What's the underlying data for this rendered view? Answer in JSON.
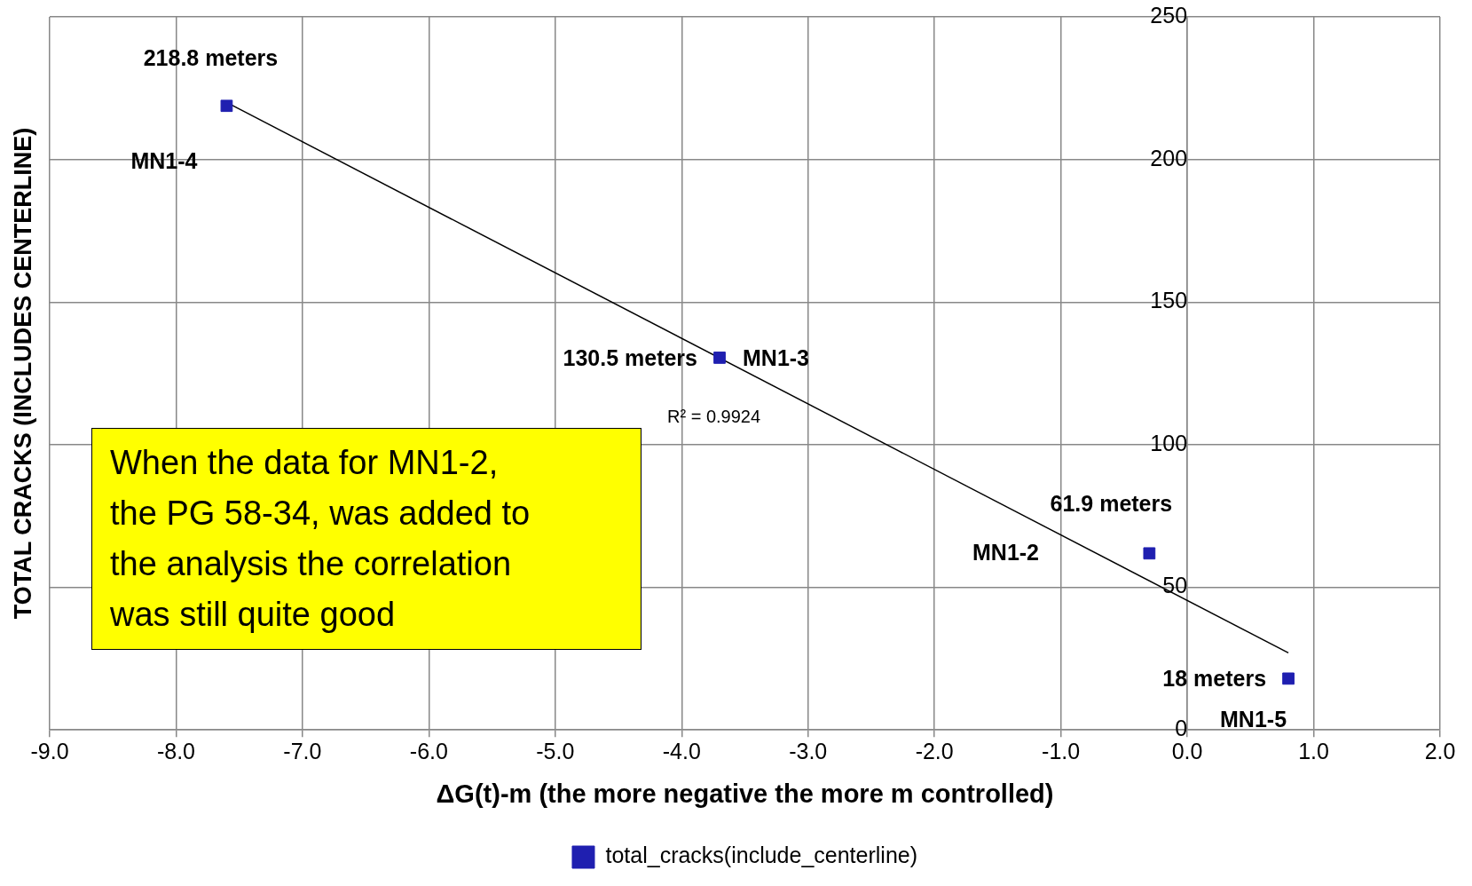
{
  "chart_data": {
    "type": "scatter",
    "xlabel": "ΔG(t)-m (the more negative the more m controlled)",
    "ylabel": "TOTAL CRACKS (INCLUDES CENTERLINE)",
    "xlim": [
      -9,
      2
    ],
    "xticks": [
      {
        "value": -9,
        "label": "-9.0"
      },
      {
        "value": -8,
        "label": "-8.0"
      },
      {
        "value": -7,
        "label": "-7.0"
      },
      {
        "value": -6,
        "label": "-6.0"
      },
      {
        "value": -5,
        "label": "-5.0"
      },
      {
        "value": -4,
        "label": "-4.0"
      },
      {
        "value": -3,
        "label": "-3.0"
      },
      {
        "value": -2,
        "label": "-2.0"
      },
      {
        "value": -1,
        "label": "-1.0"
      },
      {
        "value": 0,
        "label": "0.0"
      },
      {
        "value": 1,
        "label": "1.0"
      },
      {
        "value": 2,
        "label": "2.0"
      }
    ],
    "ylim": [
      0,
      250
    ],
    "yticks": [
      0,
      50,
      100,
      150,
      200,
      250
    ],
    "grid": true,
    "legend": "bottom",
    "marker": "square",
    "series": [
      {
        "name": "total_cracks(include_centerline)",
        "color": "#1f1fb0",
        "x": [
          -7.6,
          -3.7,
          -0.3,
          0.8
        ],
        "values": [
          218.8,
          130.5,
          61.9,
          18
        ],
        "value_labels": [
          "218.8 meters",
          "130.5 meters",
          "61.9 meters",
          "18 meters"
        ]
      },
      {
        "type": "line",
        "color": "#000000",
        "x": [
          -7.6,
          0.8
        ],
        "values": [
          220,
          27
        ],
        "marker": "none"
      }
    ],
    "annotations": [
      {
        "text": "MN1-4",
        "x": -7.6,
        "y": 218.8
      },
      {
        "text": "MN1-3",
        "x": -3.7,
        "y": 130.5
      },
      "MN1-2",
      {
        "text": "MN1-5",
        "x": 0.8,
        "y": 18
      },
      "R² = 0.9924",
      "When the data for MN1-2, the PG 58-34, was added to the analysis the correlation was still quite good"
    ]
  }
}
